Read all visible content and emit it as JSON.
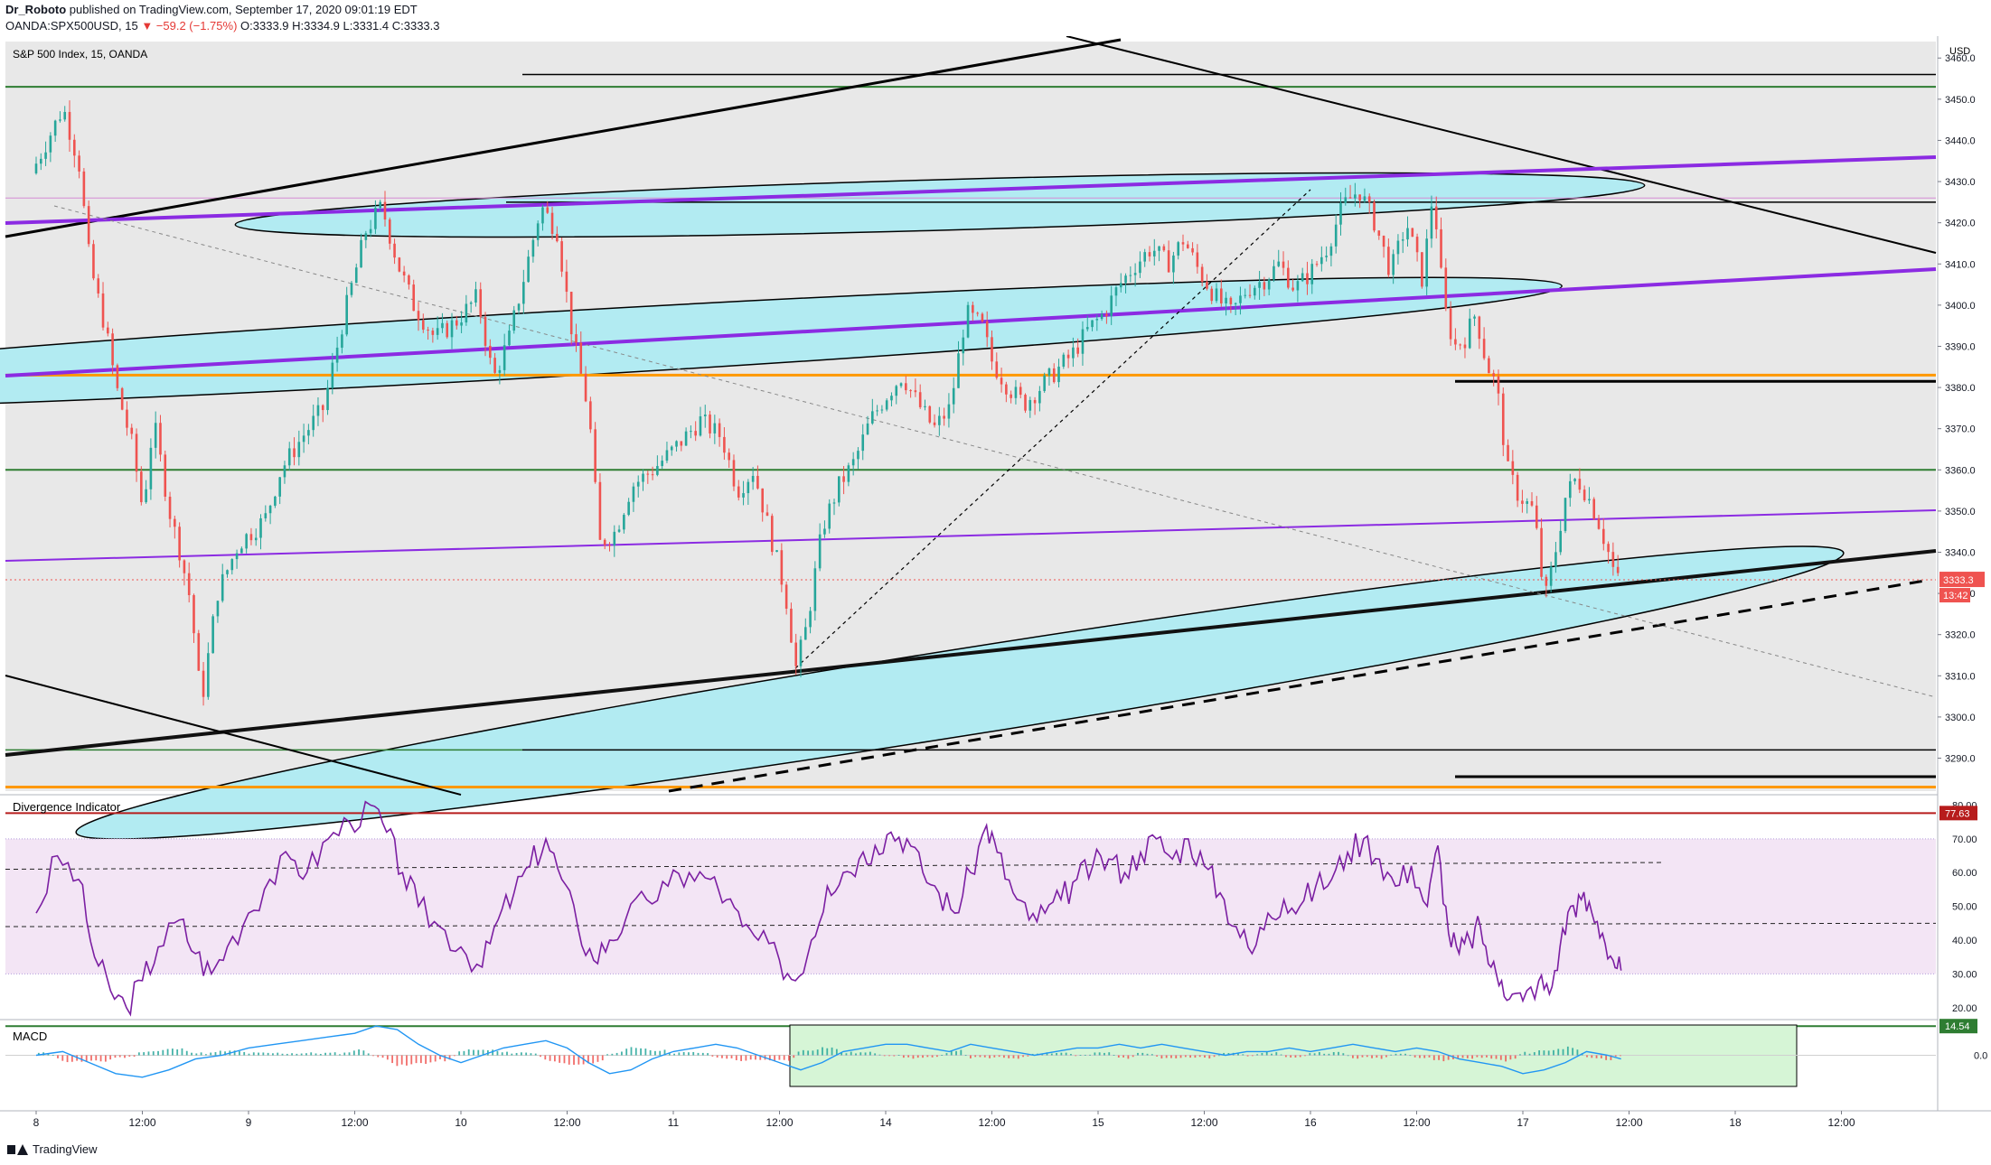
{
  "header": {
    "author": "Dr_Roboto",
    "published_text": "published on TradingView.com, September 17, 2020 09:01:19 EDT",
    "symbol_line_prefix": "OANDA:SPX500USD, 15",
    "change": "▼ −59.2 (−1.75%)",
    "ohlc": "O:3333.9 H:3334.9 L:3331.4 C:3333.3"
  },
  "footer": {
    "brand": "TradingView"
  },
  "colors": {
    "candle_up": "#26a69a",
    "candle_down": "#ef5350",
    "purple": "#8b2be2",
    "orange": "#ff9800",
    "green_line": "#2e7d32",
    "ellipse_fill": "#b2ebf2",
    "rsi_line": "#7b1fa2",
    "macd_line": "#2196f3",
    "red_line": "#b71c1c"
  },
  "chart_data": [
    {
      "type": "candlestick",
      "title": "S&P 500 Index, 15, OANDA",
      "currency_label": "USD",
      "ylim": [
        3282,
        3464
      ],
      "y_ticks": [
        3290,
        3300,
        3310,
        3320,
        3330,
        3340,
        3350,
        3360,
        3370,
        3380,
        3390,
        3400,
        3410,
        3420,
        3430,
        3440,
        3450,
        3460
      ],
      "x_ticks": [
        "8",
        "12:00",
        "9",
        "12:00",
        "10",
        "12:00",
        "11",
        "12:00",
        "14",
        "12:00",
        "15",
        "12:00",
        "16",
        "12:00",
        "17",
        "12:00",
        "18",
        "12:00"
      ],
      "last_price_label": "3333.3",
      "countdown_label": "13:42",
      "price_path": [
        [
          0,
          3432
        ],
        [
          0.3,
          3440
        ],
        [
          0.6,
          3448
        ],
        [
          0.9,
          3434
        ],
        [
          1.1,
          3410
        ],
        [
          1.4,
          3394
        ],
        [
          1.6,
          3380
        ],
        [
          1.9,
          3366
        ],
        [
          2.1,
          3350
        ],
        [
          2.3,
          3372
        ],
        [
          2.6,
          3350
        ],
        [
          2.8,
          3340
        ],
        [
          3.0,
          3328
        ],
        [
          3.2,
          3303
        ],
        [
          3.5,
          3330
        ],
        [
          3.9,
          3342
        ],
        [
          4.4,
          3348
        ],
        [
          4.7,
          3360
        ],
        [
          5.1,
          3368
        ],
        [
          5.5,
          3375
        ],
        [
          5.9,
          3398
        ],
        [
          6.3,
          3418
        ],
        [
          6.6,
          3424
        ],
        [
          6.9,
          3410
        ],
        [
          7.2,
          3400
        ],
        [
          7.6,
          3392
        ],
        [
          8.0,
          3396
        ],
        [
          8.4,
          3402
        ],
        [
          8.7,
          3382
        ],
        [
          9.0,
          3392
        ],
        [
          9.3,
          3408
        ],
        [
          9.6,
          3424
        ],
        [
          9.9,
          3418
        ],
        [
          10.2,
          3392
        ],
        [
          10.5,
          3374
        ],
        [
          10.7,
          3342
        ],
        [
          11.0,
          3345
        ],
        [
          11.3,
          3356
        ],
        [
          11.7,
          3360
        ],
        [
          12.1,
          3365
        ],
        [
          12.6,
          3372
        ],
        [
          13.0,
          3368
        ],
        [
          13.3,
          3355
        ],
        [
          13.6,
          3360
        ],
        [
          13.9,
          3345
        ],
        [
          14.2,
          3330
        ],
        [
          14.4,
          3312
        ],
        [
          14.6,
          3322
        ],
        [
          14.9,
          3346
        ],
        [
          15.2,
          3356
        ],
        [
          15.5,
          3362
        ],
        [
          15.8,
          3372
        ],
        [
          16.1,
          3378
        ],
        [
          16.4,
          3383
        ],
        [
          16.7,
          3376
        ],
        [
          17.0,
          3370
        ],
        [
          17.3,
          3375
        ],
        [
          17.6,
          3398
        ],
        [
          17.9,
          3395
        ],
        [
          18.1,
          3386
        ],
        [
          18.4,
          3380
        ],
        [
          18.7,
          3376
        ],
        [
          19.0,
          3380
        ],
        [
          19.3,
          3384
        ],
        [
          19.6,
          3388
        ],
        [
          19.9,
          3394
        ],
        [
          20.2,
          3398
        ],
        [
          20.5,
          3405
        ],
        [
          20.8,
          3410
        ],
        [
          21.1,
          3414
        ],
        [
          21.4,
          3410
        ],
        [
          21.7,
          3416
        ],
        [
          22.0,
          3408
        ],
        [
          22.3,
          3402
        ],
        [
          22.6,
          3398
        ],
        [
          22.9,
          3404
        ],
        [
          23.2,
          3406
        ],
        [
          23.5,
          3410
        ],
        [
          23.8,
          3404
        ],
        [
          24.1,
          3408
        ],
        [
          24.4,
          3414
        ],
        [
          24.7,
          3424
        ],
        [
          25.0,
          3428
        ],
        [
          25.3,
          3420
        ],
        [
          25.6,
          3408
        ],
        [
          25.9,
          3420
        ],
        [
          26.2,
          3406
        ],
        [
          26.4,
          3428
        ],
        [
          26.6,
          3400
        ],
        [
          26.8,
          3390
        ],
        [
          27.0,
          3392
        ],
        [
          27.2,
          3398
        ],
        [
          27.4,
          3386
        ],
        [
          27.6,
          3380
        ],
        [
          27.8,
          3360
        ],
        [
          28.0,
          3354
        ],
        [
          28.3,
          3350
        ],
        [
          28.5,
          3328
        ],
        [
          28.7,
          3340
        ],
        [
          28.9,
          3354
        ],
        [
          29.1,
          3358
        ],
        [
          29.3,
          3354
        ],
        [
          29.5,
          3348
        ],
        [
          29.7,
          3340
        ],
        [
          29.85,
          3333.3
        ]
      ]
    },
    {
      "type": "line",
      "title": "Divergence Indicator",
      "ylim": [
        17,
        82
      ],
      "y_ticks": [
        20,
        30,
        40,
        50,
        60,
        70,
        80
      ],
      "upper_label": "77.63",
      "lower_label": "14.54",
      "series": [
        {
          "values": [
            [
              0,
              48
            ],
            [
              0.4,
              65
            ],
            [
              0.8,
              58
            ],
            [
              1.1,
              35
            ],
            [
              1.4,
              25
            ],
            [
              1.7,
              20
            ],
            [
              2.0,
              28
            ],
            [
              2.3,
              38
            ],
            [
              2.7,
              46
            ],
            [
              3.0,
              36
            ],
            [
              3.3,
              30
            ],
            [
              3.6,
              38
            ],
            [
              4.0,
              48
            ],
            [
              4.4,
              58
            ],
            [
              4.8,
              64
            ],
            [
              5.1,
              60
            ],
            [
              5.5,
              70
            ],
            [
              5.9,
              75
            ],
            [
              6.3,
              80
            ],
            [
              6.6,
              72
            ],
            [
              6.9,
              60
            ],
            [
              7.2,
              50
            ],
            [
              7.6,
              44
            ],
            [
              8.0,
              38
            ],
            [
              8.4,
              32
            ],
            [
              8.7,
              46
            ],
            [
              9.0,
              54
            ],
            [
              9.3,
              62
            ],
            [
              9.6,
              70
            ],
            [
              9.9,
              58
            ],
            [
              10.2,
              44
            ],
            [
              10.5,
              34
            ],
            [
              10.8,
              40
            ],
            [
              11.1,
              46
            ],
            [
              11.5,
              52
            ],
            [
              11.9,
              56
            ],
            [
              12.3,
              60
            ],
            [
              12.7,
              58
            ],
            [
              13.0,
              52
            ],
            [
              13.3,
              44
            ],
            [
              13.6,
              40
            ],
            [
              14.0,
              34
            ],
            [
              14.3,
              28
            ],
            [
              14.6,
              40
            ],
            [
              14.9,
              56
            ],
            [
              15.2,
              60
            ],
            [
              15.5,
              64
            ],
            [
              15.8,
              68
            ],
            [
              16.1,
              72
            ],
            [
              16.4,
              70
            ],
            [
              16.7,
              60
            ],
            [
              17.0,
              54
            ],
            [
              17.3,
              48
            ],
            [
              17.6,
              60
            ],
            [
              17.9,
              74
            ],
            [
              18.1,
              66
            ],
            [
              18.4,
              54
            ],
            [
              18.7,
              46
            ],
            [
              19.0,
              48
            ],
            [
              19.3,
              52
            ],
            [
              19.6,
              58
            ],
            [
              19.9,
              62
            ],
            [
              20.2,
              64
            ],
            [
              20.5,
              60
            ],
            [
              20.8,
              66
            ],
            [
              21.1,
              70
            ],
            [
              21.4,
              64
            ],
            [
              21.7,
              70
            ],
            [
              22.0,
              62
            ],
            [
              22.3,
              54
            ],
            [
              22.6,
              44
            ],
            [
              22.9,
              36
            ],
            [
              23.2,
              48
            ],
            [
              23.5,
              52
            ],
            [
              23.8,
              50
            ],
            [
              24.1,
              56
            ],
            [
              24.4,
              58
            ],
            [
              24.7,
              66
            ],
            [
              25.0,
              70
            ],
            [
              25.3,
              64
            ],
            [
              25.6,
              56
            ],
            [
              25.9,
              62
            ],
            [
              26.2,
              50
            ],
            [
              26.4,
              68
            ],
            [
              26.6,
              42
            ],
            [
              26.8,
              36
            ],
            [
              27.0,
              40
            ],
            [
              27.2,
              44
            ],
            [
              27.4,
              32
            ],
            [
              27.6,
              28
            ],
            [
              27.8,
              24
            ],
            [
              28.0,
              22
            ],
            [
              28.3,
              28
            ],
            [
              28.5,
              24
            ],
            [
              28.7,
              38
            ],
            [
              28.9,
              50
            ],
            [
              29.1,
              52
            ],
            [
              29.3,
              48
            ],
            [
              29.5,
              42
            ],
            [
              29.7,
              34
            ],
            [
              29.85,
              31
            ]
          ]
        }
      ]
    },
    {
      "type": "line",
      "title": "MACD",
      "ylim": [
        -9,
        9
      ],
      "y_ticks": [
        0.0
      ],
      "series": [
        {
          "values": [
            [
              0,
              0
            ],
            [
              0.5,
              1
            ],
            [
              1.0,
              -2
            ],
            [
              1.5,
              -5
            ],
            [
              2.0,
              -6
            ],
            [
              2.5,
              -4
            ],
            [
              3.0,
              -1
            ],
            [
              3.5,
              0
            ],
            [
              4.0,
              2
            ],
            [
              4.5,
              3
            ],
            [
              5.0,
              4
            ],
            [
              5.5,
              5
            ],
            [
              6.0,
              6
            ],
            [
              6.4,
              8
            ],
            [
              6.8,
              7
            ],
            [
              7.2,
              3
            ],
            [
              7.6,
              0
            ],
            [
              8.0,
              -2
            ],
            [
              8.4,
              0
            ],
            [
              8.8,
              2
            ],
            [
              9.2,
              3
            ],
            [
              9.6,
              4
            ],
            [
              10.0,
              2
            ],
            [
              10.4,
              -2
            ],
            [
              10.8,
              -5
            ],
            [
              11.2,
              -4
            ],
            [
              11.6,
              -1
            ],
            [
              12.0,
              1
            ],
            [
              12.4,
              2
            ],
            [
              12.8,
              3
            ],
            [
              13.2,
              2
            ],
            [
              13.6,
              0
            ],
            [
              14.0,
              -2
            ],
            [
              14.4,
              -4
            ],
            [
              14.8,
              -2
            ],
            [
              15.2,
              1
            ],
            [
              15.6,
              2
            ],
            [
              16.0,
              3
            ],
            [
              16.4,
              3
            ],
            [
              16.8,
              2
            ],
            [
              17.2,
              1
            ],
            [
              17.6,
              3
            ],
            [
              18.0,
              2
            ],
            [
              18.4,
              1
            ],
            [
              18.8,
              0
            ],
            [
              19.2,
              1
            ],
            [
              19.6,
              2
            ],
            [
              20.0,
              2
            ],
            [
              20.4,
              3
            ],
            [
              20.8,
              2
            ],
            [
              21.2,
              3
            ],
            [
              21.6,
              2
            ],
            [
              22.0,
              1
            ],
            [
              22.4,
              0
            ],
            [
              22.8,
              1
            ],
            [
              23.2,
              1
            ],
            [
              23.6,
              2
            ],
            [
              24.0,
              1
            ],
            [
              24.4,
              2
            ],
            [
              24.8,
              3
            ],
            [
              25.2,
              2
            ],
            [
              25.6,
              1
            ],
            [
              26.0,
              2
            ],
            [
              26.4,
              1
            ],
            [
              26.8,
              -1
            ],
            [
              27.2,
              -2
            ],
            [
              27.6,
              -3
            ],
            [
              28.0,
              -5
            ],
            [
              28.4,
              -4
            ],
            [
              28.8,
              -2
            ],
            [
              29.2,
              1
            ],
            [
              29.6,
              0
            ],
            [
              29.85,
              -1
            ]
          ]
        }
      ]
    }
  ]
}
